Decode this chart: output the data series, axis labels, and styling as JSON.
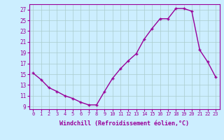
{
  "x": [
    0,
    1,
    2,
    3,
    4,
    5,
    6,
    7,
    8,
    9,
    10,
    11,
    12,
    13,
    14,
    15,
    16,
    17,
    18,
    19,
    20,
    21,
    22,
    23
  ],
  "y": [
    15.2,
    14.0,
    12.5,
    11.8,
    11.0,
    10.5,
    9.8,
    9.3,
    9.3,
    11.8,
    14.2,
    16.0,
    17.5,
    18.8,
    21.5,
    23.5,
    25.3,
    25.3,
    27.2,
    27.2,
    26.7,
    19.5,
    17.3,
    14.5
  ],
  "xlim": [
    -0.5,
    23.5
  ],
  "ylim": [
    8.5,
    28
  ],
  "yticks": [
    9,
    11,
    13,
    15,
    17,
    19,
    21,
    23,
    25,
    27
  ],
  "xticks": [
    0,
    1,
    2,
    3,
    4,
    5,
    6,
    7,
    8,
    9,
    10,
    11,
    12,
    13,
    14,
    15,
    16,
    17,
    18,
    19,
    20,
    21,
    22,
    23
  ],
  "xlabel": "Windchill (Refroidissement éolien,°C)",
  "line_color": "#990099",
  "marker": "+",
  "bg_color": "#cceeff",
  "grid_color": "#aacccc",
  "tick_color": "#990099",
  "label_color": "#990099",
  "xlabel_fontsize": 6.0,
  "xtick_fontsize": 5.0,
  "ytick_fontsize": 5.5,
  "linewidth": 1.0,
  "markersize": 3.5,
  "markeredgewidth": 1.0
}
